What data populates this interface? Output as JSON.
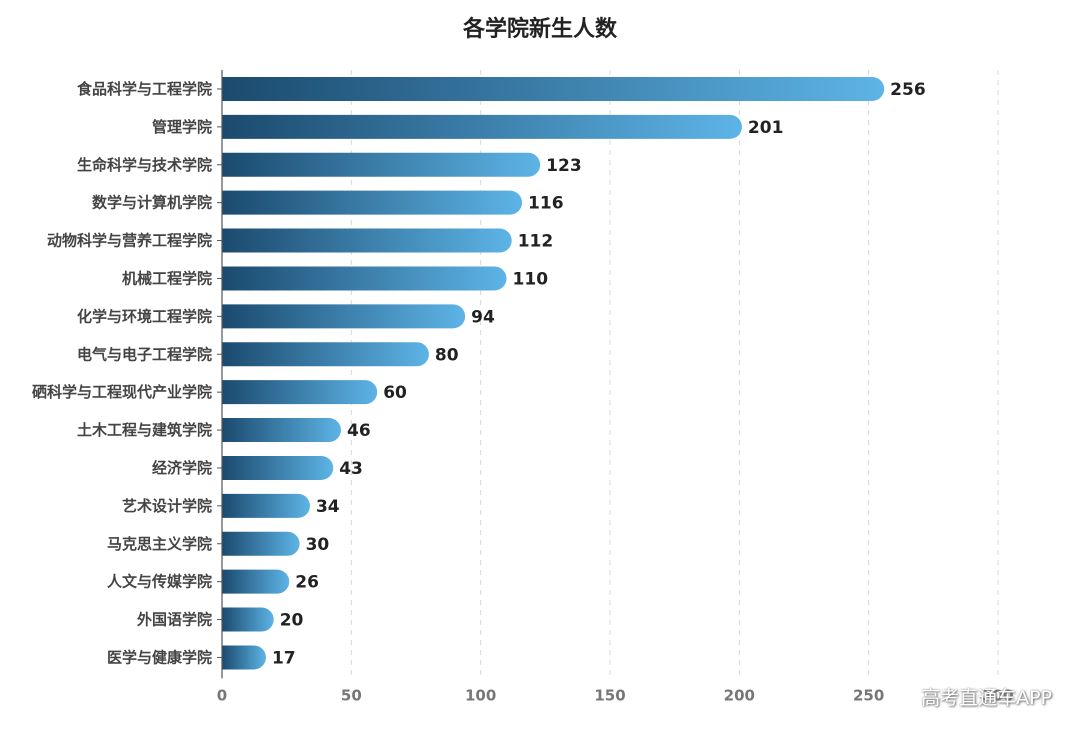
{
  "chart_data": {
    "type": "bar",
    "orientation": "horizontal",
    "title": "各学院新生人数",
    "categories": [
      "食品科学与工程学院",
      "管理学院",
      "生命科学与技术学院",
      "数学与计算机学院",
      "动物科学与营养工程学院",
      "机械工程学院",
      "化学与环境工程学院",
      "电气与电子工程学院",
      "硒科学与工程现代产业学院",
      "土木工程与建筑学院",
      "经济学院",
      "艺术设计学院",
      "马克思主义学院",
      "人文与传媒学院",
      "外国语学院",
      "医学与健康学院"
    ],
    "values": [
      256,
      201,
      123,
      116,
      112,
      110,
      94,
      80,
      60,
      46,
      43,
      34,
      30,
      26,
      20,
      17
    ],
    "xlim": [
      0,
      300
    ],
    "xticks": [
      "0",
      "50",
      "100",
      "150",
      "200",
      "250",
      "300"
    ],
    "grid": true,
    "bar_gradient": [
      "#1b4a6e",
      "#5db4e6"
    ]
  },
  "watermark": "高考直通车APP"
}
